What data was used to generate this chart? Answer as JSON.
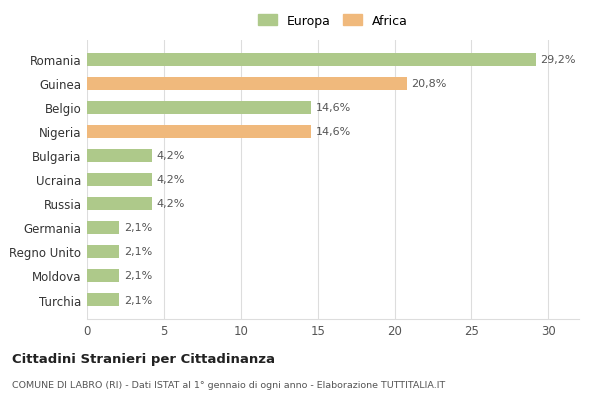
{
  "categories": [
    "Romania",
    "Guinea",
    "Belgio",
    "Nigeria",
    "Bulgaria",
    "Ucraina",
    "Russia",
    "Germania",
    "Regno Unito",
    "Moldova",
    "Turchia"
  ],
  "values": [
    29.2,
    20.8,
    14.6,
    14.6,
    4.2,
    4.2,
    4.2,
    2.1,
    2.1,
    2.1,
    2.1
  ],
  "labels": [
    "29,2%",
    "20,8%",
    "14,6%",
    "14,6%",
    "4,2%",
    "4,2%",
    "4,2%",
    "2,1%",
    "2,1%",
    "2,1%",
    "2,1%"
  ],
  "colors": [
    "#aec98a",
    "#f0b97c",
    "#aec98a",
    "#f0b97c",
    "#aec98a",
    "#aec98a",
    "#aec98a",
    "#aec98a",
    "#aec98a",
    "#aec98a",
    "#aec98a"
  ],
  "europa_color": "#aec98a",
  "africa_color": "#f0b97c",
  "background_color": "#ffffff",
  "grid_color": "#dddddd",
  "xlim": [
    0,
    32
  ],
  "xticks": [
    0,
    5,
    10,
    15,
    20,
    25,
    30
  ],
  "title": "Cittadini Stranieri per Cittadinanza",
  "subtitle": "COMUNE DI LABRO (RI) - Dati ISTAT al 1° gennaio di ogni anno - Elaborazione TUTTITALIA.IT",
  "legend_europa": "Europa",
  "legend_africa": "Africa",
  "bar_height": 0.55
}
